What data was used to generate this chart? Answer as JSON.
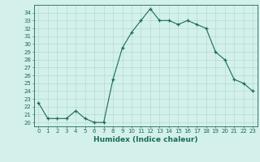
{
  "x": [
    0,
    1,
    2,
    3,
    4,
    5,
    6,
    7,
    8,
    9,
    10,
    11,
    12,
    13,
    14,
    15,
    16,
    17,
    18,
    19,
    20,
    21,
    22,
    23
  ],
  "y": [
    22.5,
    20.5,
    20.5,
    20.5,
    21.5,
    20.5,
    20.0,
    20.0,
    25.5,
    29.5,
    31.5,
    33.0,
    34.5,
    33.0,
    33.0,
    32.5,
    33.0,
    32.5,
    32.0,
    29.0,
    28.0,
    25.5,
    25.0,
    24.0
  ],
  "bg_color": "#d4f0eb",
  "line_color": "#1a6b5a",
  "marker_color": "#1a6b5a",
  "grid_color": "#a8d8d0",
  "xlabel": "Humidex (Indice chaleur)",
  "ylim": [
    19.5,
    35.0
  ],
  "xlim": [
    -0.5,
    23.5
  ],
  "yticks": [
    20,
    21,
    22,
    23,
    24,
    25,
    26,
    27,
    28,
    29,
    30,
    31,
    32,
    33,
    34
  ],
  "xticks": [
    0,
    1,
    2,
    3,
    4,
    5,
    6,
    7,
    8,
    9,
    10,
    11,
    12,
    13,
    14,
    15,
    16,
    17,
    18,
    19,
    20,
    21,
    22,
    23
  ],
  "label_fontsize": 6.5,
  "tick_fontsize": 5.0
}
